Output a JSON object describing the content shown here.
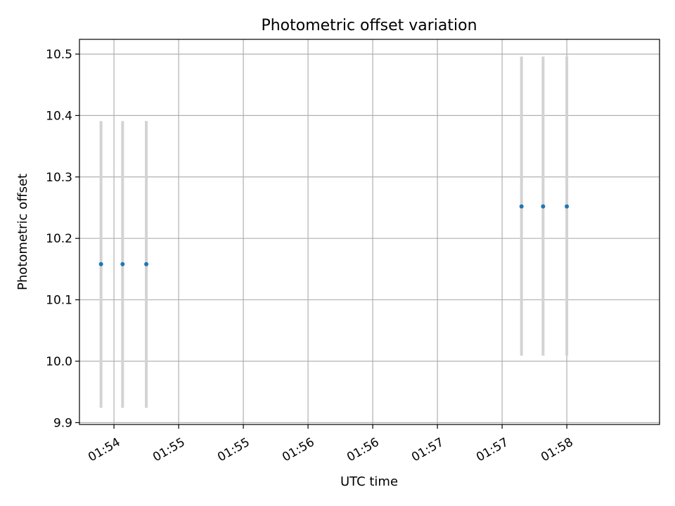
{
  "chart_data": {
    "type": "scatter",
    "title": "Photometric offset variation",
    "xlabel": "UTC time",
    "ylabel": "Photometric offset",
    "xlim": [
      "01:53:44",
      "01:58:13"
    ],
    "ylim": [
      9.897,
      10.524
    ],
    "grid": true,
    "x_ticks": [
      {
        "at": "01:54:00",
        "label": "01:54"
      },
      {
        "at": "01:54:30",
        "label": "01:55"
      },
      {
        "at": "01:55:00",
        "label": "01:55"
      },
      {
        "at": "01:55:30",
        "label": "01:56"
      },
      {
        "at": "01:56:00",
        "label": "01:56"
      },
      {
        "at": "01:56:30",
        "label": "01:57"
      },
      {
        "at": "01:57:00",
        "label": "01:57"
      },
      {
        "at": "01:57:30",
        "label": "01:58"
      }
    ],
    "y_ticks": [
      {
        "value": 9.9,
        "label": "9.9"
      },
      {
        "value": 10.0,
        "label": "10.0"
      },
      {
        "value": 10.1,
        "label": "10.1"
      },
      {
        "value": 10.2,
        "label": "10.2"
      },
      {
        "value": 10.3,
        "label": "10.3"
      },
      {
        "value": 10.4,
        "label": "10.4"
      },
      {
        "value": 10.5,
        "label": "10.5"
      }
    ],
    "points": [
      {
        "x": "01:53:54",
        "y": 10.158,
        "err_low": 9.924,
        "err_high": 10.391
      },
      {
        "x": "01:54:04",
        "y": 10.158,
        "err_low": 9.924,
        "err_high": 10.391
      },
      {
        "x": "01:54:15",
        "y": 10.158,
        "err_low": 9.924,
        "err_high": 10.391
      },
      {
        "x": "01:57:09",
        "y": 10.252,
        "err_low": 10.009,
        "err_high": 10.496
      },
      {
        "x": "01:57:19",
        "y": 10.252,
        "err_low": 10.009,
        "err_high": 10.496
      },
      {
        "x": "01:57:30",
        "y": 10.252,
        "err_low": 10.009,
        "err_high": 10.496
      }
    ],
    "colors": {
      "marker": "#1f77b4",
      "errorbar": "#d3d3d3",
      "grid": "#b0b0b0",
      "frame": "#000000"
    }
  }
}
